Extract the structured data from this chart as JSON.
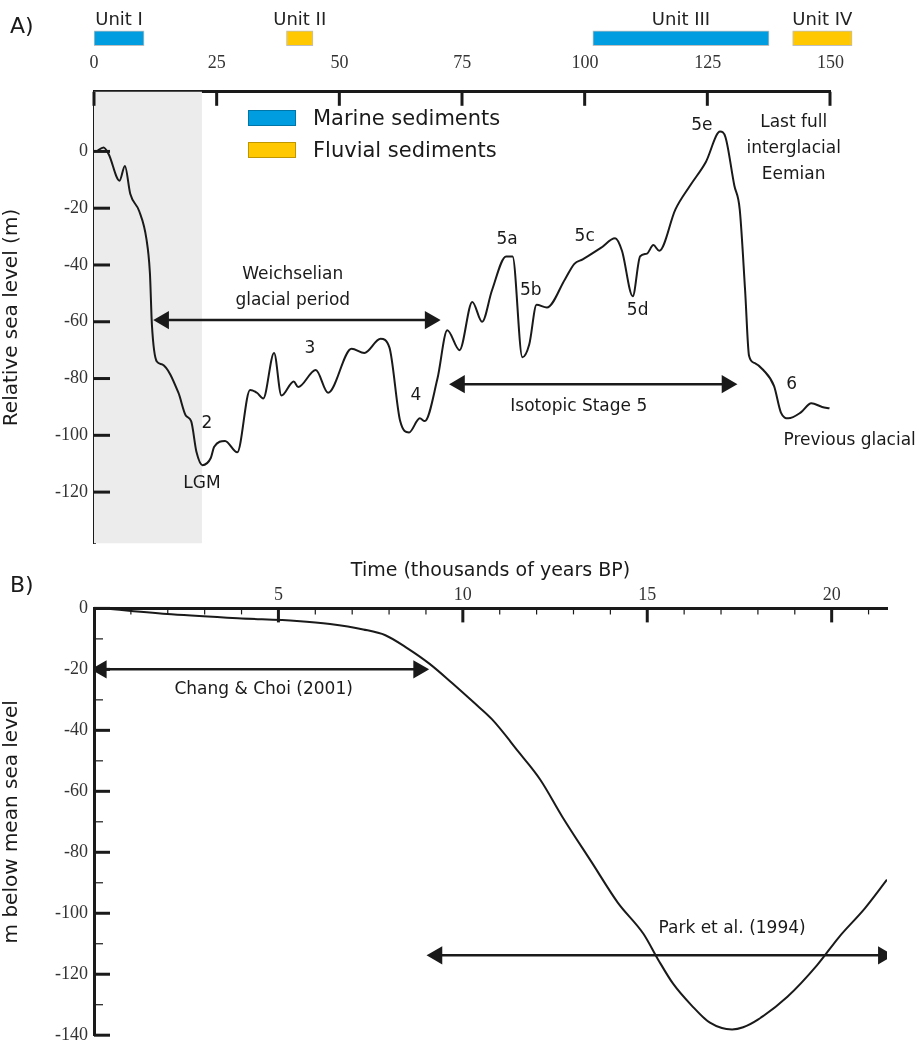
{
  "chart_data": [
    {
      "type": "bar",
      "orientation": "horizontal",
      "categories": [
        null
      ],
      "xlim": [
        0,
        155
      ],
      "xticks": [
        0,
        25,
        50,
        75,
        100,
        125,
        150
      ],
      "series": [
        {
          "name": "Unit I",
          "color": "#009ee0",
          "base": [
            0
          ],
          "values": [
            10.2
          ]
        },
        {
          "name": "Unit II",
          "color": "#ffc800",
          "base": [
            39.2
          ],
          "values": [
            5.4
          ]
        },
        {
          "name": "Unit III",
          "color": "#009ee0",
          "base": [
            101.6
          ],
          "values": [
            35.9
          ]
        },
        {
          "name": "Unit IV",
          "color": "#ffc800",
          "base": [
            142.3
          ],
          "values": [
            12.1
          ]
        }
      ],
      "annotations": [
        "Marine sediments",
        "Fluvial sediments"
      ]
    },
    {
      "type": "line",
      "ylabel": "Relative sea level (m)",
      "tick_labels": "y",
      "xlim": [
        0,
        150
      ],
      "xticks": [
        0,
        25,
        50,
        75,
        100,
        125,
        150
      ],
      "ylim": [
        -138,
        21
      ],
      "yticks": [
        0,
        -20,
        -40,
        -60,
        -80,
        -100,
        -120
      ],
      "series": [
        {
          "color": "#1a1a1a",
          "x": [
            0.5,
            1.95,
            3.0,
            5.2,
            6.3,
            7.4,
            9.2,
            10.7,
            11.4,
            11.8,
            12.8,
            13.9,
            17.2,
            18.7,
            19.8,
            20.9,
            22.1,
            23.8,
            24.5,
            26.7,
            29.2,
            31.8,
            33.2,
            34.5,
            36.7,
            38.2,
            40.7,
            41.6,
            45.2,
            47.7,
            52.5,
            55.1,
            58.4,
            60.2,
            62.4,
            64.2,
            66.4,
            67.4,
            70.0,
            72.0,
            74.5,
            77.1,
            79.1,
            81.1,
            84.0,
            85.3,
            87.3,
            88.7,
            90.2,
            92.3,
            96.0,
            97.9,
            99.6,
            103.3,
            106.2,
            107.6,
            109.8,
            111.3,
            112.7,
            114.0,
            115.2,
            118.5,
            121.5,
            124.7,
            127.6,
            128.7,
            130.5,
            131.6,
            132.7,
            133.5,
            134.6,
            136.4,
            138.6,
            140.0,
            141.5,
            144.0,
            146.2,
            148.4,
            149.9
          ],
          "values": [
            0,
            1.4,
            -1,
            -10.3,
            -5.1,
            -15,
            -21,
            -31,
            -43,
            -61,
            -74,
            -75,
            -85,
            -93,
            -95,
            -106,
            -110.5,
            -108,
            -104,
            -102,
            -106,
            -84,
            -85,
            -87,
            -71,
            -86,
            -81,
            -83,
            -77,
            -85,
            -69.5,
            -71,
            -66,
            -69,
            -95,
            -99,
            -94,
            -95,
            -80,
            -63,
            -70,
            -53,
            -60,
            -49,
            -37,
            -37,
            -72.5,
            -68,
            -54,
            -55,
            -45,
            -39.6,
            -38,
            -34,
            -30.6,
            -35,
            -51,
            -37,
            -36,
            -33,
            -35,
            -20.4,
            -12,
            -3.7,
            7,
            5,
            -12,
            -20.4,
            -49,
            -72,
            -74.5,
            -77,
            -82.7,
            -92,
            -94,
            -92,
            -88.7,
            -90,
            -90.5
          ]
        },
        {
          "color": "#1a1a1a",
          "marker": "triangle",
          "x": [
            14.2,
            68.5
          ],
          "values": [
            -59.4,
            -59.4
          ]
        },
        {
          "color": "#1a1a1a",
          "marker": "triangle",
          "x": [
            74.5,
            129
          ],
          "values": [
            -82,
            -82
          ]
        }
      ],
      "bands": [
        {
          "axis": "x",
          "from": 0,
          "to": 22,
          "color": "#ececec"
        }
      ],
      "annotations": [
        "A)",
        "2",
        "LGM",
        "3",
        "4",
        "Weichselian\nglacial period",
        "5a",
        "5b",
        "5c",
        "5d",
        "5e",
        "Last full\ninterglacial\nEemian",
        "6",
        "Isotopic Stage 5",
        "Previous glacial"
      ]
    },
    {
      "type": "line",
      "xlabel": "Time (thousands of years BP)",
      "ylabel": "m below mean sea level",
      "xlim": [
        0,
        21.5
      ],
      "xticks": [
        {
          "value": 1,
          "label": null
        },
        {
          "value": 2,
          "label": null
        },
        {
          "value": 3,
          "label": null
        },
        {
          "value": 4,
          "label": null
        },
        5,
        {
          "value": 6,
          "label": null
        },
        {
          "value": 7,
          "label": null
        },
        {
          "value": 8,
          "label": null
        },
        {
          "value": 9,
          "label": null
        },
        10,
        {
          "value": 11,
          "label": null
        },
        {
          "value": 12,
          "label": null
        },
        {
          "value": 13,
          "label": null
        },
        {
          "value": 14,
          "label": null
        },
        15,
        {
          "value": 16,
          "label": null
        },
        {
          "value": 17,
          "label": null
        },
        {
          "value": 18,
          "label": null
        },
        {
          "value": 19,
          "label": null
        },
        20,
        {
          "value": 21,
          "label": null
        }
      ],
      "ylim": [
        -140,
        0
      ],
      "yticks": [
        0,
        {
          "value": -10,
          "label": null
        },
        -20,
        {
          "value": -30,
          "label": null
        },
        -40,
        {
          "value": -50,
          "label": null
        },
        -60,
        {
          "value": -70,
          "label": null
        },
        -80,
        {
          "value": -90,
          "label": null
        },
        -100,
        {
          "value": -110,
          "label": null
        },
        -120,
        {
          "value": -130,
          "label": null
        },
        -140
      ],
      "series": [
        {
          "color": "#1a1a1a",
          "x": [
            0.27,
            2.1,
            3.9,
            5.5,
            6.4,
            7.3,
            7.9,
            8.5,
            9.1,
            9.7,
            10.3,
            10.8,
            11.5,
            12.1,
            12.7,
            13.5,
            14.2,
            14.9,
            15.3,
            15.7,
            16.2,
            16.7,
            17.3,
            17.6,
            18.0,
            18.8,
            19.6,
            20.2,
            20.9,
            21.5
          ],
          "values": [
            0,
            -1.9,
            -3.2,
            -4.1,
            -5.1,
            -6.9,
            -8.8,
            -13.1,
            -18.2,
            -24.4,
            -30.9,
            -36.5,
            -46.9,
            -56.2,
            -68.4,
            -83.4,
            -96.5,
            -106.8,
            -115.3,
            -123.1,
            -130.2,
            -135.9,
            -138.1,
            -137.4,
            -134.9,
            -127.4,
            -117.1,
            -107.8,
            -98.4,
            -89.0
          ]
        },
        {
          "color": "#1a1a1a",
          "marker": "triangle",
          "x": [
            0.2,
            8.8
          ],
          "values": [
            -20,
            -20
          ]
        },
        {
          "color": "#1a1a1a",
          "marker": "triangle",
          "x": [
            9.3,
            21.4
          ],
          "values": [
            -113.8,
            -113.8
          ]
        }
      ],
      "annotations": [
        "B)",
        "Chang & Choi (2001)",
        "Park et al. (1994)"
      ]
    }
  ]
}
